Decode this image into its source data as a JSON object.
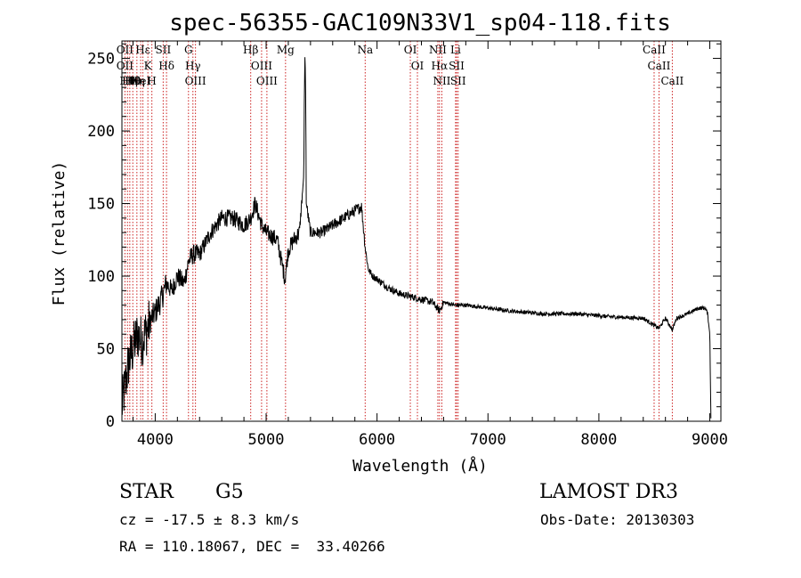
{
  "chart_data": {
    "type": "line",
    "title": "spec-56355-GAC109N33V1_sp04-118.fits",
    "xlabel": "Wavelength (Å)",
    "ylabel": "Flux (relative)",
    "xlim": [
      3700,
      9100
    ],
    "ylim": [
      0,
      262
    ],
    "xticks": [
      4000,
      5000,
      6000,
      7000,
      8000,
      9000
    ],
    "yticks": [
      0,
      50,
      100,
      150,
      200,
      250
    ],
    "spectrum_anchors": {
      "x": [
        3700,
        3760,
        3800,
        3840,
        3880,
        3920,
        3960,
        4000,
        4060,
        4100,
        4150,
        4200,
        4260,
        4300,
        4340,
        4400,
        4500,
        4600,
        4700,
        4800,
        4861,
        4900,
        4960,
        5000,
        5100,
        5170,
        5200,
        5250,
        5300,
        5340,
        5345,
        5351,
        5357,
        5362,
        5400,
        5500,
        5600,
        5700,
        5800,
        5860,
        5893,
        5920,
        5960,
        6000,
        6100,
        6200,
        6300,
        6400,
        6500,
        6563,
        6600,
        6700,
        6800,
        7000,
        7200,
        7500,
        7800,
        8100,
        8400,
        8498,
        8542,
        8600,
        8662,
        8700,
        8800,
        8900,
        8960,
        8980,
        9000,
        9010
      ],
      "y": [
        10,
        40,
        50,
        60,
        55,
        62,
        70,
        75,
        85,
        95,
        90,
        100,
        95,
        110,
        115,
        115,
        130,
        140,
        140,
        135,
        140,
        150,
        135,
        130,
        125,
        98,
        118,
        125,
        130,
        170,
        230,
        255,
        220,
        150,
        130,
        130,
        135,
        140,
        145,
        148,
        120,
        105,
        100,
        98,
        92,
        88,
        86,
        84,
        82,
        76,
        82,
        80,
        80,
        78,
        76,
        74,
        74,
        72,
        71,
        66,
        64,
        71,
        63,
        71,
        74,
        78,
        78,
        74,
        60,
        2
      ]
    },
    "spectral_lines": [
      {
        "wavelength": 3727,
        "labels": [
          "OII",
          "OII"
        ]
      },
      {
        "wavelength": 3750,
        "labels": [
          "Hθ"
        ]
      },
      {
        "wavelength": 3771,
        "labels": [
          "Hη"
        ]
      },
      {
        "wavelength": 3798,
        "labels": [
          "Hθ"
        ]
      },
      {
        "wavelength": 3835,
        "labels": [
          "Hη"
        ]
      },
      {
        "wavelength": 3869,
        "labels": [
          "HeI"
        ]
      },
      {
        "wavelength": 3889,
        "labels": [
          "Hε"
        ]
      },
      {
        "wavelength": 3934,
        "labels": [
          "K"
        ]
      },
      {
        "wavelength": 3970,
        "labels": [
          "H"
        ]
      },
      {
        "wavelength": 4072,
        "labels": [
          "SII"
        ]
      },
      {
        "wavelength": 4102,
        "labels": [
          "Hδ"
        ]
      },
      {
        "wavelength": 4300,
        "labels": [
          "G"
        ]
      },
      {
        "wavelength": 4340,
        "labels": [
          "Hγ"
        ]
      },
      {
        "wavelength": 4363,
        "labels": [
          "OIII"
        ]
      },
      {
        "wavelength": 4861,
        "labels": [
          "Hβ"
        ]
      },
      {
        "wavelength": 4959,
        "labels": [
          "OIII"
        ]
      },
      {
        "wavelength": 5007,
        "labels": [
          "OIII"
        ]
      },
      {
        "wavelength": 5175,
        "labels": [
          "Mg"
        ]
      },
      {
        "wavelength": 5893,
        "labels": [
          "Na"
        ]
      },
      {
        "wavelength": 6300,
        "labels": [
          "OI"
        ]
      },
      {
        "wavelength": 6364,
        "labels": [
          "OI"
        ]
      },
      {
        "wavelength": 6548,
        "labels": [
          "NII"
        ]
      },
      {
        "wavelength": 6563,
        "labels": [
          "Hα"
        ]
      },
      {
        "wavelength": 6584,
        "labels": [
          "NII"
        ]
      },
      {
        "wavelength": 6708,
        "labels": [
          "Li"
        ]
      },
      {
        "wavelength": 6717,
        "labels": [
          "SII"
        ]
      },
      {
        "wavelength": 6731,
        "labels": [
          "SII"
        ]
      },
      {
        "wavelength": 8498,
        "labels": [
          "CaII"
        ]
      },
      {
        "wavelength": 8542,
        "labels": [
          "CaII"
        ]
      },
      {
        "wavelength": 8662,
        "labels": [
          "CaII"
        ]
      }
    ]
  },
  "info": {
    "object_class": "STAR",
    "subclass": "G5",
    "survey": "LAMOST DR3",
    "redshift": "cz = -17.5 ± 8.3 km/s",
    "obs_date": "Obs-Date: 20130303",
    "coords": "RA = 110.18067, DEC =  33.40266"
  },
  "colors": {
    "line_marker": "#cc2222",
    "spectrum": "#000000"
  }
}
